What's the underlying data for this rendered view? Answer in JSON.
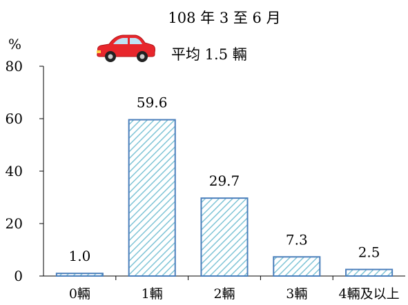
{
  "chart_data": {
    "type": "bar",
    "title": "108 年 3 至 6 月",
    "annotation": "平均 1.5 輛",
    "ylabel": "%",
    "xlabel": "",
    "categories": [
      "0輛",
      "1輛",
      "2輛",
      "3輛",
      "4輛及以上"
    ],
    "values": [
      1.0,
      59.6,
      29.7,
      7.3,
      2.5
    ],
    "value_labels": [
      "1.0",
      "59.6",
      "29.7",
      "7.3",
      "2.5"
    ],
    "ylim": [
      0,
      80
    ],
    "yticks": [
      "0",
      "20",
      "40",
      "60",
      "80"
    ],
    "grid": false,
    "legend": "none",
    "bar_fill": "hatched",
    "colors": {
      "bar_stroke": "#4a7ebb",
      "hatch": "#7fc4d6",
      "axis": "#000000",
      "car_body": "#e8262c"
    },
    "icon": "car-icon"
  }
}
